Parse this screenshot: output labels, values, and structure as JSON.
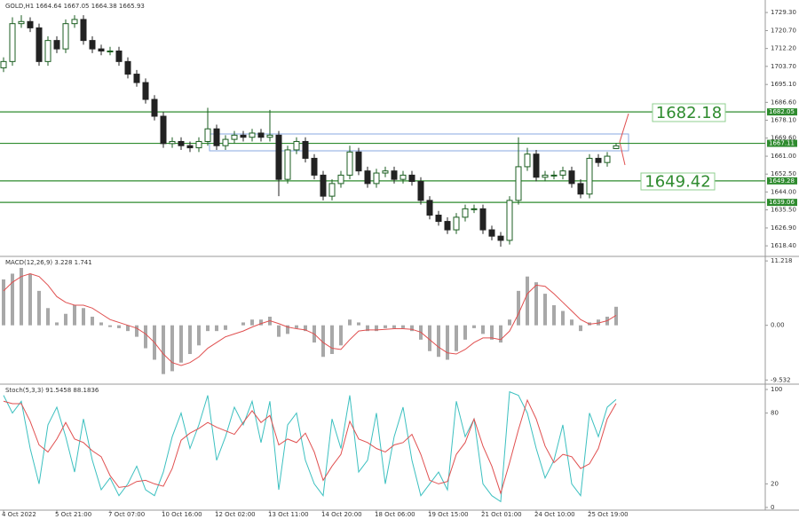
{
  "chart_data": [
    {
      "type": "candlestick",
      "title": "GOLD,H1 1664.64 1667.05 1664.38 1665.93",
      "open": [
        1703,
        1706,
        1724,
        1725,
        1722,
        1706,
        1716,
        1712,
        1724,
        1726,
        1716,
        1712,
        1711,
        1711,
        1706,
        1700,
        1696,
        1688,
        1680,
        1667,
        1668,
        1666,
        1665,
        1668,
        1674,
        1666,
        1669,
        1671,
        1670,
        1672,
        1670,
        1671,
        1650,
        1664,
        1668,
        1660,
        1652,
        1642,
        1648,
        1652,
        1663,
        1654,
        1648,
        1653,
        1654,
        1650,
        1652,
        1649,
        1640,
        1633,
        1630,
        1626,
        1632,
        1636,
        1636,
        1626,
        1623,
        1621,
        1640,
        1656,
        1662,
        1651,
        1652,
        1652,
        1654,
        1648,
        1643,
        1660,
        1658,
        1664.64
      ],
      "high": [
        1708,
        1727,
        1728,
        1727,
        1724,
        1718,
        1718,
        1726,
        1728,
        1728,
        1718,
        1714,
        1713,
        1713,
        1708,
        1702,
        1698,
        1690,
        1682,
        1670,
        1670,
        1668,
        1670,
        1684,
        1676,
        1671,
        1673,
        1673,
        1674,
        1674,
        1683,
        1673,
        1666,
        1670,
        1670,
        1662,
        1654,
        1650,
        1654,
        1666,
        1665,
        1656,
        1655,
        1656,
        1656,
        1654,
        1654,
        1651,
        1642,
        1635,
        1632,
        1634,
        1638,
        1638,
        1638,
        1628,
        1625,
        1642,
        1670,
        1665,
        1664,
        1654,
        1654,
        1656,
        1656,
        1650,
        1662,
        1662,
        1663,
        1667.05
      ],
      "low": [
        1701,
        1704,
        1722,
        1720,
        1704,
        1704,
        1710,
        1710,
        1722,
        1714,
        1710,
        1709,
        1709,
        1704,
        1698,
        1694,
        1686,
        1678,
        1665,
        1665,
        1664,
        1663,
        1663,
        1666,
        1664,
        1664,
        1667,
        1668,
        1668,
        1668,
        1668,
        1642,
        1648,
        1662,
        1658,
        1650,
        1640,
        1640,
        1646,
        1650,
        1652,
        1646,
        1646,
        1651,
        1648,
        1648,
        1647,
        1638,
        1631,
        1628,
        1624,
        1624,
        1630,
        1634,
        1624,
        1621,
        1618,
        1619,
        1638,
        1654,
        1649,
        1649,
        1650,
        1650,
        1646,
        1641,
        1641,
        1656,
        1656,
        1664.38
      ],
      "close": [
        1706,
        1724,
        1725,
        1722,
        1706,
        1716,
        1712,
        1724,
        1726,
        1716,
        1712,
        1711,
        1711,
        1706,
        1700,
        1696,
        1688,
        1680,
        1667,
        1668,
        1666,
        1665,
        1668,
        1674,
        1666,
        1669,
        1671,
        1670,
        1672,
        1670,
        1671,
        1650,
        1664,
        1668,
        1660,
        1652,
        1642,
        1648,
        1652,
        1663,
        1654,
        1648,
        1653,
        1654,
        1650,
        1652,
        1649,
        1640,
        1633,
        1630,
        1626,
        1632,
        1636,
        1636,
        1626,
        1623,
        1621,
        1640,
        1656,
        1662,
        1651,
        1652,
        1652,
        1654,
        1648,
        1643,
        1660,
        1658,
        1661,
        1665.93
      ],
      "up_color": "#1b5e20",
      "down_color": "#222222",
      "ylim": [
        1613.8,
        1734.4
      ],
      "yticks": [
        {
          "value": 1729.3,
          "label": "1729.30"
        },
        {
          "value": 1720.7,
          "label": "1720.70"
        },
        {
          "value": 1712.2,
          "label": "1712.20"
        },
        {
          "value": 1703.7,
          "label": "1703.70"
        },
        {
          "value": 1695.1,
          "label": "1695.10"
        },
        {
          "value": 1686.6,
          "label": "1686.60"
        },
        {
          "value": 1678.1,
          "label": "1678.10"
        },
        {
          "value": 1669.6,
          "label": "1669.60"
        },
        {
          "value": 1661.0,
          "label": "1661.00"
        },
        {
          "value": 1652.5,
          "label": "1652.50"
        },
        {
          "value": 1644.0,
          "label": "1644.00"
        },
        {
          "value": 1635.5,
          "label": "1635.50"
        },
        {
          "value": 1626.9,
          "label": "1626.90"
        },
        {
          "value": 1618.4,
          "label": "1618.40"
        }
      ],
      "levels": [
        1682.05,
        1667.11,
        1649.28,
        1639.06
      ],
      "level_color": "#2e8b2e",
      "annotations": [
        "1682.18",
        "1649.42"
      ]
    },
    {
      "type": "bar",
      "title": "MACD(12,26,9) 3.228 1.741",
      "series": [
        {
          "style": "bar",
          "color": "#a8a8a8",
          "values": [
            8,
            9,
            10,
            9,
            6,
            3,
            0.5,
            2,
            3.5,
            3,
            1.5,
            0.5,
            -0.3,
            -0.5,
            -1,
            -2,
            -4,
            -6,
            -8.5,
            -8,
            -6.5,
            -5,
            -3.5,
            -1,
            -1,
            -0.8,
            0,
            0.5,
            1,
            1,
            1.5,
            -2,
            -1.5,
            -0.5,
            -1,
            -3,
            -5.5,
            -5,
            -3.5,
            1,
            0.5,
            -1,
            -1,
            -0.5,
            -0.5,
            -0.5,
            -1,
            -2.5,
            -4.5,
            -5.5,
            -6,
            -4.5,
            -2.5,
            -0.5,
            -1.5,
            -2.5,
            -3,
            1,
            6,
            8.5,
            7.5,
            5.5,
            3.5,
            2.5,
            1,
            -1,
            0.5,
            1,
            1.5,
            3.228
          ]
        },
        {
          "style": "line",
          "color": "#e05050",
          "values": [
            6,
            7.5,
            8.5,
            9,
            8.5,
            7,
            5,
            4,
            3.5,
            3.5,
            3,
            2,
            1,
            0.5,
            0,
            -0.5,
            -1.5,
            -3,
            -5,
            -6.5,
            -7,
            -6.5,
            -5.5,
            -4,
            -3,
            -2,
            -1.5,
            -1,
            -0.3,
            0.3,
            0.8,
            0.3,
            -0.3,
            -0.6,
            -0.8,
            -1.5,
            -3,
            -4,
            -4.2,
            -2.5,
            -1,
            -0.8,
            -0.8,
            -0.7,
            -0.6,
            -0.6,
            -0.7,
            -1.2,
            -2.5,
            -3.8,
            -4.8,
            -5,
            -4.2,
            -3,
            -2.2,
            -2.2,
            -2.5,
            -1,
            2,
            5.5,
            7,
            6.8,
            5.5,
            4,
            2.5,
            1,
            0.2,
            0.4,
            0.8,
            1.741
          ]
        }
      ],
      "ylim": [
        -10.1,
        11.7
      ],
      "yticks": [
        11.218,
        {
          "value": 0,
          "label": "0.00"
        },
        -9.532
      ]
    },
    {
      "type": "line",
      "title": "Stoch(5,3,3) 91.5458 88.1836",
      "categories": [
        "4 Oct 2022",
        null,
        null,
        null,
        null,
        null,
        "5 Oct 21:00",
        null,
        null,
        null,
        null,
        null,
        "7 Oct 07:00",
        null,
        null,
        null,
        null,
        null,
        "10 Oct 16:00",
        null,
        null,
        null,
        null,
        null,
        "12 Oct 02:00",
        null,
        null,
        null,
        null,
        null,
        "13 Oct 11:00",
        null,
        null,
        null,
        null,
        null,
        "14 Oct 20:00",
        null,
        null,
        null,
        null,
        null,
        "18 Oct 06:00",
        null,
        null,
        null,
        null,
        null,
        "19 Oct 15:00",
        null,
        null,
        null,
        null,
        null,
        "21 Oct 01:00",
        null,
        null,
        null,
        null,
        null,
        "24 Oct 10:00",
        null,
        null,
        null,
        null,
        null,
        "25 Oct 19:00",
        null,
        null,
        null
      ],
      "series": [
        {
          "color": "#3cc0c0",
          "values": [
            95,
            80,
            90,
            50,
            20,
            70,
            85,
            60,
            30,
            75,
            40,
            15,
            25,
            10,
            20,
            35,
            15,
            10,
            30,
            60,
            80,
            50,
            70,
            95,
            40,
            60,
            85,
            70,
            90,
            55,
            90,
            15,
            70,
            80,
            40,
            20,
            10,
            75,
            50,
            95,
            30,
            40,
            80,
            20,
            60,
            85,
            40,
            10,
            20,
            30,
            15,
            90,
            60,
            75,
            20,
            10,
            5,
            98,
            95,
            80,
            50,
            25,
            40,
            70,
            20,
            10,
            80,
            60,
            85,
            91.5458
          ]
        },
        {
          "color": "#e05050",
          "values": [
            90,
            88,
            88,
            73,
            53,
            47,
            58,
            72,
            58,
            55,
            48,
            43,
            27,
            17,
            18,
            22,
            23,
            20,
            18,
            33,
            57,
            63,
            67,
            72,
            68,
            65,
            62,
            72,
            82,
            72,
            78,
            53,
            58,
            55,
            63,
            47,
            23,
            35,
            45,
            73,
            58,
            55,
            50,
            47,
            53,
            55,
            62,
            45,
            23,
            20,
            22,
            45,
            55,
            75,
            52,
            35,
            12,
            38,
            66,
            91,
            75,
            52,
            38,
            45,
            43,
            33,
            37,
            50,
            75,
            88.1836
          ]
        }
      ],
      "ylim": [
        -1.5,
        103
      ],
      "yticks": [
        0,
        20,
        80,
        100
      ]
    }
  ]
}
